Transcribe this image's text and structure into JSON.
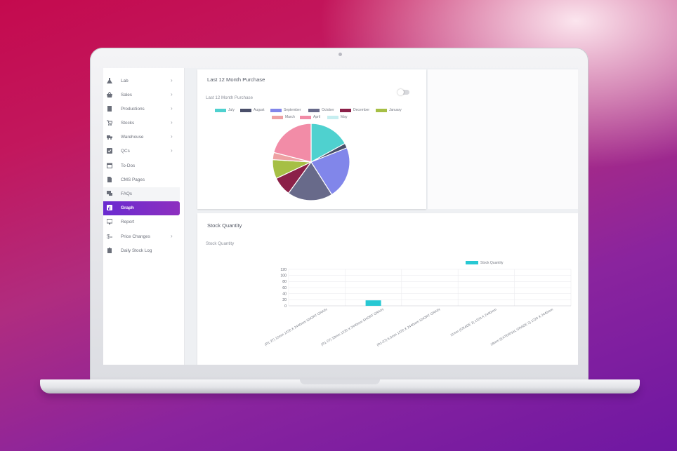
{
  "sidebar": {
    "items": [
      {
        "label": "Lab",
        "icon": "flask-icon",
        "chevron": ">"
      },
      {
        "label": "Sales",
        "icon": "basket-icon",
        "chevron": ">"
      },
      {
        "label": "Productions",
        "icon": "box-icon",
        "chevron": ">"
      },
      {
        "label": "Stocks",
        "icon": "cart-icon",
        "chevron": ">"
      },
      {
        "label": "Warehouse",
        "icon": "truck-icon",
        "chevron": ">"
      },
      {
        "label": "QCs",
        "icon": "checkbox-icon",
        "chevron": ">"
      },
      {
        "label": "To-Dos",
        "icon": "calendar-icon",
        "chevron": ""
      },
      {
        "label": "CMS Pages",
        "icon": "document-icon",
        "chevron": ""
      },
      {
        "label": "FAQs",
        "icon": "chat-icon",
        "chevron": ""
      },
      {
        "label": "Graph",
        "icon": "chart-icon",
        "chevron": ""
      },
      {
        "label": "Report",
        "icon": "monitor-icon",
        "chevron": ""
      },
      {
        "label": "Price Changes",
        "icon": "price-icon",
        "chevron": ">"
      },
      {
        "label": "Daily Stock Log",
        "icon": "clipboard-icon",
        "chevron": ""
      }
    ],
    "active_item": "Graph",
    "colors": {
      "active_start": "#6a2bd0",
      "active_end": "#8d2fbf"
    }
  },
  "purchase_card": {
    "title": "Last 12 Month Purchase",
    "subtitle": "Last 12 Month Purchase",
    "toggle": "off"
  },
  "stock_card": {
    "title": "Stock Quantity",
    "subtitle": "Stock Quantity"
  },
  "chart_data": [
    {
      "type": "pie",
      "title": "Last 12 Month Purchase",
      "legend_position": "top",
      "categories": [
        "July",
        "August",
        "September",
        "October",
        "December",
        "January",
        "March",
        "April",
        "May"
      ],
      "values": [
        17,
        2,
        22,
        19,
        8,
        8,
        3,
        21,
        0
      ],
      "colors": [
        "#4fd1cf",
        "#4a4f6a",
        "#8186ea",
        "#686a8a",
        "#8b2048",
        "#a6bf45",
        "#eea1a3",
        "#f28ca7",
        "#c6eef0"
      ]
    },
    {
      "type": "bar",
      "title": "Stock Quantity",
      "legend_position": "top-right",
      "series": [
        {
          "name": "Stock Quantity",
          "color": "#28c8d3",
          "values": [
            0,
            18,
            0,
            0,
            0
          ]
        }
      ],
      "categories": [
        "(R1-27) 12mm 1220 X 2440mm SHORT GRAIN",
        "(R1-27) 18mm 1220 X 2440mm SHORT GRAIN",
        "(R1-37) 6.5mm 1220 X 2440mm SHORT GRAIN",
        "11mm (GRADE 2) 1220 X 2440mm",
        "18mm (EXTERNAL GRADE 2) 1220 X 2440mm"
      ],
      "y_ticks": [
        0,
        20,
        40,
        60,
        80,
        100,
        120
      ],
      "ylim": [
        0,
        120
      ],
      "grid": true
    }
  ]
}
